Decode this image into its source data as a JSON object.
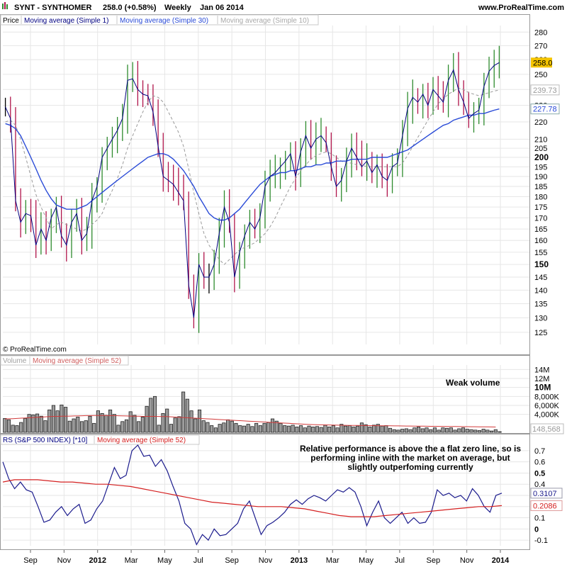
{
  "header": {
    "title": "SYNT - SYNTHOMER",
    "last": "258.0 (+0.58%)",
    "period": "Weekly",
    "date": "Jan 06 2014",
    "site": "www.ProRealTime.com"
  },
  "copyright": "© ProRealTime.com",
  "colors": {
    "up": "#2e8b2e",
    "down": "#b0144a",
    "flat": "#000000",
    "ma1": "#000080",
    "ma30": "#2a4bd7",
    "ma10": "#9a9a9a",
    "vol_ma": "#d23a3a",
    "rs_line": "#1a1a8c",
    "rs_ma": "#d42020",
    "last_bg": "#f4c400",
    "grid": "#e6e6e6"
  },
  "chart_data": [
    {
      "type": "candlestick",
      "panel": "price",
      "legend": [
        "Price",
        "Moving average (Simple 1)",
        "Moving average (Simple 30)",
        "Moving average (Simple 10)"
      ],
      "x_ticks": [
        "Sep",
        "Nov",
        "2012",
        "Mar",
        "May",
        "Jul",
        "Sep",
        "Nov",
        "2013",
        "Mar",
        "May",
        "Jul",
        "Sep",
        "Nov",
        "2014"
      ],
      "y_ticks": [
        125,
        130,
        135,
        140,
        145,
        150,
        155,
        160,
        165,
        170,
        175,
        180,
        185,
        190,
        195,
        200,
        205,
        210,
        220,
        230,
        240,
        250,
        260,
        270,
        280
      ],
      "y_scale": "log",
      "y_range": [
        121,
        285
      ],
      "last_value_label": "258.0",
      "ma10_label": "239.73",
      "ma30_label": "227.78",
      "close": [
        229,
        222,
        178,
        168,
        172,
        171,
        158,
        165,
        160,
        170,
        175,
        162,
        158,
        168,
        172,
        160,
        163,
        178,
        185,
        200,
        205,
        210,
        215,
        222,
        246,
        247,
        240,
        237,
        236,
        226,
        206,
        190,
        188,
        186,
        182,
        178,
        142,
        130,
        150,
        145,
        145,
        150,
        163,
        175,
        168,
        145,
        155,
        162,
        168,
        165,
        170,
        185,
        190,
        192,
        195,
        198,
        202,
        190,
        203,
        212,
        205,
        210,
        212,
        208,
        195,
        185,
        188,
        198,
        205,
        200,
        195,
        198,
        192,
        196,
        190,
        188,
        195,
        197,
        212,
        228,
        235,
        232,
        237,
        230,
        240,
        236,
        232,
        246,
        253,
        240,
        232,
        222,
        225,
        227,
        242,
        252,
        256,
        258
      ],
      "ma10": [
        220,
        221,
        218,
        210,
        200,
        190,
        181,
        175,
        170,
        165,
        167,
        168,
        167,
        166,
        165,
        164,
        165,
        167,
        169,
        172,
        178,
        183,
        189,
        196,
        205,
        212,
        219,
        226,
        232,
        236,
        235,
        232,
        226,
        220,
        214,
        206,
        194,
        182,
        172,
        163,
        158,
        155,
        152,
        150,
        152,
        154,
        156,
        157,
        158,
        159,
        161,
        163,
        166,
        170,
        175,
        180,
        185,
        189,
        193,
        196,
        199,
        201,
        202,
        203,
        202,
        200,
        198,
        197,
        197,
        196,
        196,
        195,
        195,
        195,
        195,
        195,
        195,
        195,
        197,
        201,
        206,
        211,
        216,
        221,
        226,
        231,
        234,
        237,
        239,
        241,
        240,
        238,
        237,
        236,
        237,
        238,
        239,
        239.73
      ],
      "ma30": [
        219,
        218,
        216,
        212,
        206,
        200,
        194,
        188,
        183,
        179,
        176,
        175,
        174,
        174,
        174,
        175,
        176,
        178,
        180,
        182,
        184,
        186,
        188,
        190,
        192,
        194,
        196,
        198,
        200,
        201,
        202,
        202,
        201,
        199,
        196,
        193,
        189,
        185,
        180,
        176,
        172,
        170,
        169,
        169,
        170,
        172,
        174,
        177,
        180,
        183,
        186,
        188,
        190,
        191,
        192,
        192,
        193,
        193,
        194,
        195,
        195,
        196,
        196,
        197,
        197,
        198,
        198,
        198,
        199,
        199,
        199,
        199,
        200,
        200,
        200,
        200,
        201,
        202,
        203,
        204,
        206,
        208,
        210,
        212,
        214,
        216,
        218,
        219,
        221,
        222,
        223,
        224,
        224,
        225,
        225,
        226,
        227,
        227.78
      ]
    },
    {
      "type": "bar",
      "panel": "volume",
      "legend": [
        "Volume",
        "Moving average (Simple 52)"
      ],
      "y_ticks": [
        "14M",
        "12M",
        "10M",
        "8,000K",
        "6,000K",
        "4,000K"
      ],
      "y_range": [
        0,
        15000000
      ],
      "last_value_label": "148,568",
      "annotation": "Weak volume",
      "values": [
        3.1,
        2.8,
        1.6,
        1.5,
        2.2,
        3.1,
        4.0,
        3.9,
        4.1,
        3.6,
        2.6,
        5.0,
        6.0,
        4.8,
        6.1,
        5.6,
        2.5,
        3.0,
        3.4,
        2.4,
        2.6,
        3.6,
        2.0,
        4.8,
        4.2,
        3.8,
        5.0,
        4.0,
        1.6,
        2.4,
        2.8,
        4.6,
        3.8,
        2.4,
        3.4,
        5.8,
        7.6,
        8.0,
        1.6,
        4.2,
        5.2,
        1.8,
        3.2,
        3.5,
        9.0,
        7.4,
        4.8,
        3.0,
        5.0,
        2.6,
        2.2,
        1.5,
        1.0,
        1.8,
        2.1,
        2.8,
        2.5,
        2.0,
        1.5,
        1.4,
        1.8,
        1.3,
        2.0,
        1.5,
        2.0,
        2.2,
        3.0,
        2.5,
        2.0,
        1.5,
        1.4,
        1.6,
        1.2,
        1.5,
        1.0,
        1.4,
        1.2,
        1.3,
        1.1,
        1.6,
        1.2,
        1.5,
        1.0,
        1.8,
        1.4,
        1.5,
        1.2,
        1.4,
        2.1,
        1.7,
        1.2,
        1.6,
        1.8,
        1.4,
        1.5,
        0.9,
        0.6,
        0.5,
        0.7,
        0.8,
        0.6,
        1.0,
        1.2,
        0.8,
        1.0,
        0.6,
        1.0,
        0.5,
        1.0,
        0.9,
        1.0,
        0.5,
        0.8,
        1.0,
        0.7,
        0.6,
        0.5,
        0.4,
        0.7,
        0.5,
        0.3,
        0.6,
        0.15
      ],
      "ma52": [
        3.0,
        3.02,
        3.05,
        3.1,
        3.15,
        3.2,
        3.25,
        3.3,
        3.35,
        3.4,
        3.45,
        3.5,
        3.55,
        3.55,
        3.6,
        3.6,
        3.62,
        3.65,
        3.68,
        3.7,
        3.72,
        3.73,
        3.74,
        3.75,
        3.75,
        3.74,
        3.73,
        3.72,
        3.7,
        3.68,
        3.65,
        3.62,
        3.6,
        3.58,
        3.56,
        3.55,
        3.55,
        3.55,
        3.54,
        3.52,
        3.5,
        3.45,
        3.4,
        3.35,
        3.3,
        3.25,
        3.2,
        3.15,
        3.1,
        3.05,
        3.0,
        2.95,
        2.9,
        2.85,
        2.8,
        2.75,
        2.7,
        2.65,
        2.6,
        2.55,
        2.5,
        2.45,
        2.4,
        2.35,
        2.3,
        2.25,
        2.2,
        2.15,
        2.1,
        2.05,
        2.0,
        1.95,
        1.9,
        1.85,
        1.8,
        1.75,
        1.72,
        1.7,
        1.68,
        1.66,
        1.64,
        1.62,
        1.6,
        1.58,
        1.56,
        1.55,
        1.54,
        1.53,
        1.52,
        1.51,
        1.5,
        1.49,
        1.48,
        1.47,
        1.46,
        1.45,
        1.44,
        1.43,
        1.42,
        1.41,
        1.4,
        1.39,
        1.38,
        1.37,
        1.36,
        1.35,
        1.34,
        1.33,
        1.32,
        1.31,
        1.3,
        1.29,
        1.28,
        1.27,
        1.26,
        1.25,
        1.24,
        1.23,
        1.22,
        1.21,
        1.2,
        1.19
      ]
    },
    {
      "type": "line",
      "panel": "relative_strength",
      "legend": [
        "RS (S&P 500 INDEX) [*10]",
        "Moving average (Simple 52)"
      ],
      "y_ticks": [
        0.7,
        0.6,
        0.5,
        0.4,
        0.3,
        0.2,
        0.1,
        0,
        -0.1
      ],
      "y_range": [
        -0.15,
        0.75
      ],
      "rs_label": "0.3107",
      "ma_label": "0.2086",
      "annotation": "Relative performance is above the a flat zero line, so is performing inline with the market on average, but slightly outperfoming currently",
      "rs": [
        0.6,
        0.45,
        0.36,
        0.42,
        0.35,
        0.33,
        0.2,
        0.06,
        0.08,
        0.15,
        0.2,
        0.12,
        0.18,
        0.22,
        0.05,
        0.08,
        0.18,
        0.25,
        0.4,
        0.55,
        0.45,
        0.48,
        0.7,
        0.75,
        0.65,
        0.66,
        0.56,
        0.62,
        0.52,
        0.38,
        0.25,
        0.05,
        0.0,
        -0.14,
        -0.05,
        -0.1,
        0.0,
        -0.06,
        -0.05,
        0.0,
        0.05,
        0.18,
        0.25,
        0.1,
        -0.05,
        0.03,
        0.06,
        0.1,
        0.15,
        0.22,
        0.26,
        0.22,
        0.27,
        0.3,
        0.28,
        0.25,
        0.3,
        0.35,
        0.33,
        0.37,
        0.33,
        0.2,
        0.03,
        0.15,
        0.25,
        0.1,
        0.05,
        0.1,
        0.15,
        0.05,
        0.1,
        0.05,
        0.06,
        0.15,
        0.35,
        0.3,
        0.32,
        0.28,
        0.3,
        0.25,
        0.36,
        0.3,
        0.2,
        0.15,
        0.3,
        0.32
      ],
      "ma52": [
        0.42,
        0.44,
        0.44,
        0.44,
        0.43,
        0.42,
        0.42,
        0.41,
        0.4,
        0.4,
        0.39,
        0.38,
        0.36,
        0.34,
        0.32,
        0.3,
        0.28,
        0.26,
        0.24,
        0.23,
        0.22,
        0.21,
        0.2,
        0.2,
        0.2,
        0.19,
        0.18,
        0.16,
        0.14,
        0.12,
        0.11,
        0.11,
        0.11,
        0.12,
        0.13,
        0.14,
        0.15,
        0.16,
        0.17,
        0.18,
        0.19,
        0.2,
        0.2,
        0.2086
      ]
    }
  ]
}
